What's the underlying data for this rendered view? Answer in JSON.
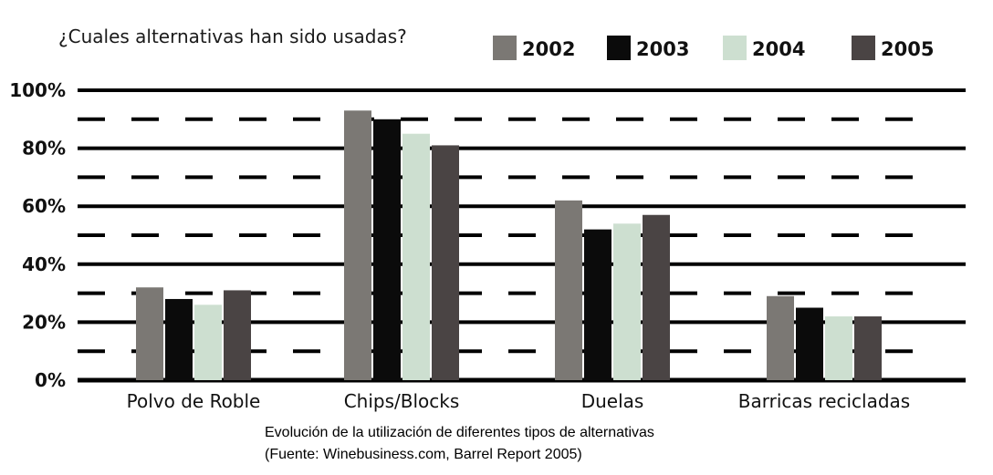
{
  "chart_data": {
    "type": "bar",
    "title": "¿Cuales alternativas han sido usadas?",
    "categories": [
      "Polvo de Roble",
      "Chips/Blocks",
      "Duelas",
      "Barricas recicladas"
    ],
    "series": [
      {
        "name": "2002",
        "color": "#7b7874",
        "values": [
          32,
          93,
          62,
          29
        ]
      },
      {
        "name": "2003",
        "color": "#0b0b0b",
        "values": [
          28,
          90,
          52,
          25
        ]
      },
      {
        "name": "2004",
        "color": "#cddfd0",
        "values": [
          26,
          85,
          54,
          22
        ]
      },
      {
        "name": "2005",
        "color": "#4a4444",
        "values": [
          31,
          81,
          57,
          22
        ]
      }
    ],
    "y_ticks": [
      "0%",
      "20%",
      "40%",
      "60%",
      "80%",
      "100%"
    ],
    "ylim": [
      0,
      100
    ],
    "grid": "solid lines every 20%, dashed lines at 10% midpoints",
    "legend_position": "top-right"
  },
  "caption": {
    "line1": "Evolución de la utilización de diferentes tipos de alternativas",
    "line2": "(Fuente: Winebusiness.com, Barrel Report 2005)"
  }
}
